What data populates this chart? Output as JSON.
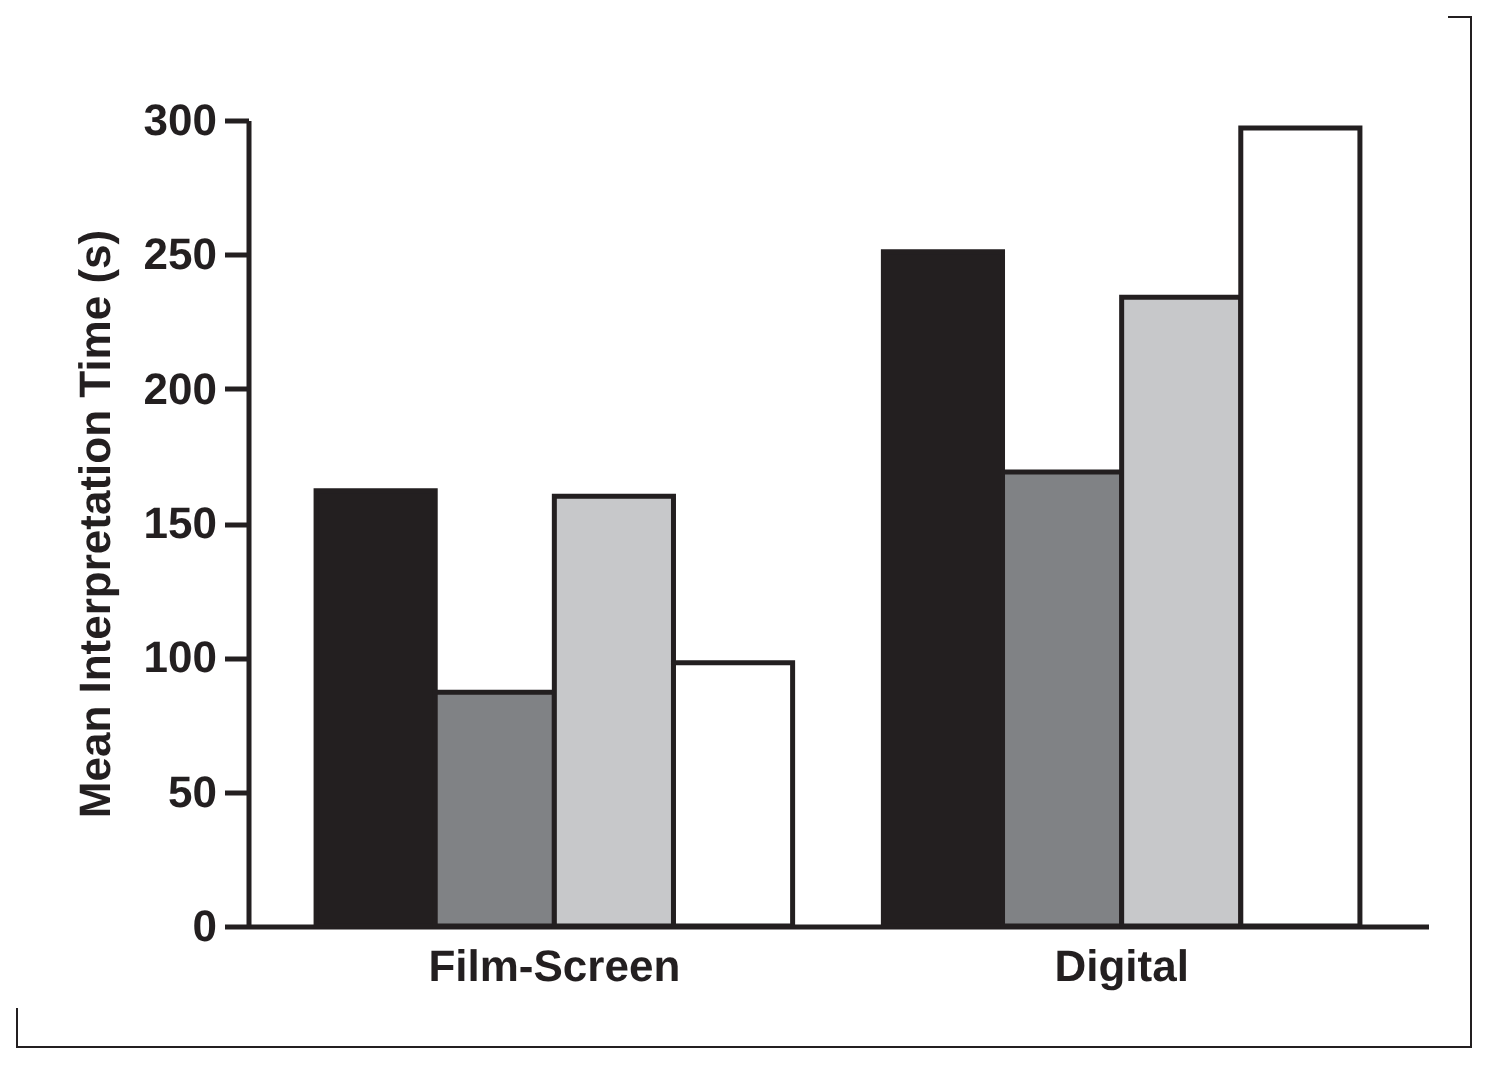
{
  "chart_data": {
    "type": "bar",
    "ylabel": "Mean Interpretation Time (s)",
    "categories": [
      "Film-Screen",
      "Digital"
    ],
    "series": [
      {
        "color": "#231f20",
        "values": [
          162,
          251
        ]
      },
      {
        "color": "#808285",
        "values": [
          87,
          169
        ]
      },
      {
        "color": "#c7c8ca",
        "values": [
          160,
          234
        ]
      },
      {
        "color": "#ffffff",
        "values": [
          98,
          297
        ]
      }
    ],
    "ylim": [
      0,
      300
    ],
    "yticks": [
      0,
      50,
      100,
      150,
      200,
      250,
      300
    ],
    "grid": false,
    "legend": false
  }
}
